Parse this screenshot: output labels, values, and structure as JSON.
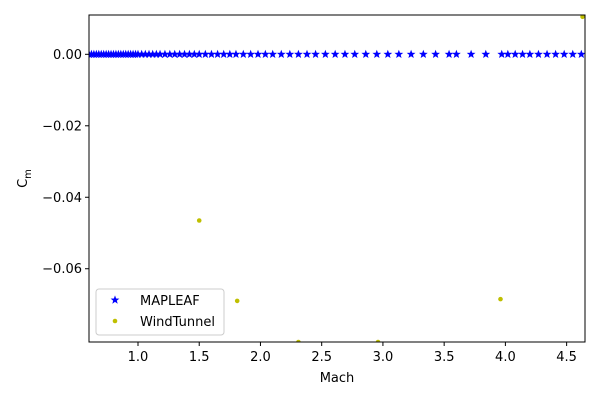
{
  "chart_data": {
    "type": "scatter",
    "xlabel": "Mach",
    "ylabel_base": "C",
    "ylabel_sub": "m",
    "xlim": [
      0.6,
      4.65
    ],
    "ylim": [
      -0.0805,
      0.011
    ],
    "xticks": [
      1.0,
      1.5,
      2.0,
      2.5,
      3.0,
      3.5,
      4.0,
      4.5
    ],
    "xtick_labels": [
      "1.0",
      "1.5",
      "2.0",
      "2.5",
      "3.0",
      "3.5",
      "4.0",
      "4.5"
    ],
    "yticks": [
      0.0,
      -0.02,
      -0.04,
      -0.06
    ],
    "ytick_labels": [
      "0.00",
      "−0.02",
      "−0.04",
      "−0.06"
    ],
    "grid": false,
    "legend_position": "lower-left",
    "series": [
      {
        "name": "MAPLEAF",
        "color": "#0000ff",
        "marker": "star",
        "x": [
          0.6,
          0.62,
          0.64,
          0.66,
          0.68,
          0.7,
          0.72,
          0.74,
          0.76,
          0.78,
          0.8,
          0.82,
          0.84,
          0.86,
          0.88,
          0.9,
          0.92,
          0.94,
          0.96,
          0.98,
          1.0,
          1.03,
          1.06,
          1.09,
          1.12,
          1.15,
          1.18,
          1.22,
          1.26,
          1.3,
          1.34,
          1.38,
          1.42,
          1.46,
          1.5,
          1.55,
          1.6,
          1.65,
          1.7,
          1.75,
          1.8,
          1.86,
          1.92,
          1.98,
          2.04,
          2.1,
          2.17,
          2.24,
          2.31,
          2.38,
          2.45,
          2.53,
          2.61,
          2.69,
          2.77,
          2.86,
          2.95,
          3.04,
          3.13,
          3.23,
          3.33,
          3.43,
          3.54,
          3.6,
          3.72,
          3.84,
          3.97,
          4.02,
          4.08,
          4.14,
          4.2,
          4.27,
          4.34,
          4.41,
          4.48,
          4.55,
          4.62
        ],
        "y": [
          0.0,
          0.0,
          0.0,
          0.0,
          0.0,
          0.0,
          0.0,
          0.0,
          0.0,
          0.0,
          0.0,
          0.0,
          0.0,
          0.0,
          0.0,
          0.0,
          0.0,
          0.0,
          0.0,
          0.0,
          0.0,
          0.0,
          0.0,
          0.0,
          0.0,
          0.0,
          0.0,
          0.0,
          0.0,
          0.0,
          0.0,
          0.0,
          0.0,
          0.0,
          0.0,
          0.0,
          0.0,
          0.0,
          0.0,
          0.0,
          0.0,
          0.0,
          0.0,
          0.0,
          0.0,
          0.0,
          0.0,
          0.0,
          0.0,
          0.0,
          0.0,
          0.0,
          0.0,
          0.0,
          0.0,
          0.0,
          0.0,
          0.0,
          0.0,
          0.0,
          0.0,
          0.0,
          0.0,
          0.0,
          0.0,
          0.0,
          0.0,
          0.0,
          0.0,
          0.0,
          0.0,
          0.0,
          0.0,
          0.0,
          0.0,
          0.0,
          0.0
        ]
      },
      {
        "name": "WindTunnel",
        "color": "#bfbf00",
        "marker": "point",
        "x": [
          1.5,
          1.81,
          2.31,
          2.96,
          3.96,
          4.63
        ],
        "y": [
          -0.0465,
          -0.069,
          -0.0805,
          -0.0805,
          -0.0685,
          0.0105
        ]
      }
    ]
  }
}
